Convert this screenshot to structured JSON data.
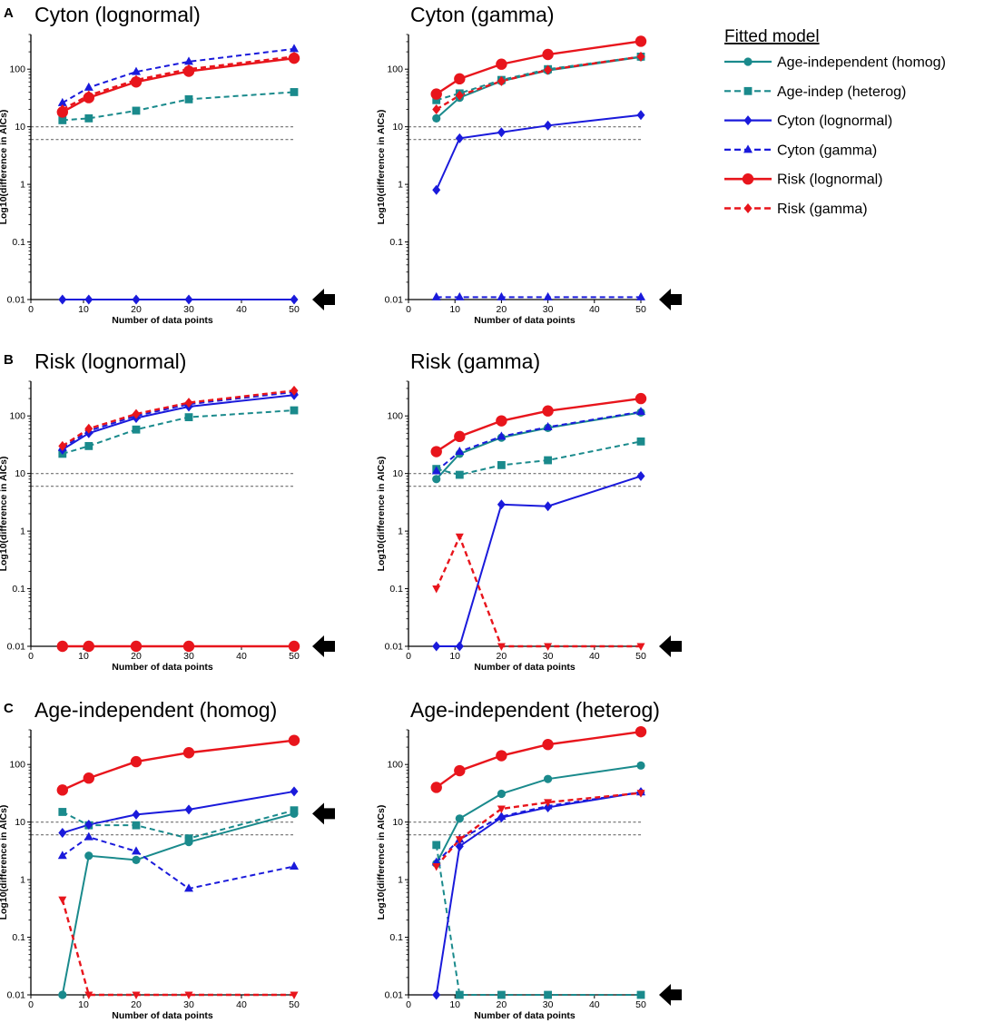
{
  "legend": {
    "title": "Fitted model",
    "items": [
      {
        "id": "ai_homog",
        "label": "Age-independent (homog)",
        "color": "#1a8a8c",
        "dash": false,
        "marker": "circle"
      },
      {
        "id": "ai_heterog",
        "label": "Age-indep (heterog)",
        "color": "#1a8a8c",
        "dash": true,
        "marker": "square"
      },
      {
        "id": "cyton_logn",
        "label": "Cyton (lognormal)",
        "color": "#1a1adb",
        "dash": false,
        "marker": "diamond"
      },
      {
        "id": "cyton_gamma",
        "label": "Cyton (gamma)",
        "color": "#1a1adb",
        "dash": true,
        "marker": "triangle"
      },
      {
        "id": "risk_logn",
        "label": "Risk (lognormal)",
        "color": "#e8151c",
        "dash": false,
        "marker": "bigcircle"
      },
      {
        "id": "risk_gamma",
        "label": "Risk (gamma)",
        "color": "#e8151c",
        "dash": true,
        "marker": "diamond"
      }
    ]
  },
  "chart_data": [
    {
      "type": "line",
      "panel_label": "A",
      "title": "Cyton (lognormal)",
      "xlabel": "Number of data points",
      "ylabel": "Log10(difference in AICs)",
      "xlim": [
        0,
        50
      ],
      "ylim": [
        0.01,
        400
      ],
      "yscale": "log",
      "xticks": [
        0,
        10,
        20,
        30,
        40,
        50
      ],
      "yticks": [
        0.01,
        0.1,
        1,
        10,
        100
      ],
      "ytick_labels": [
        "0.01",
        "0.1",
        "1",
        "10",
        "100"
      ],
      "ref_lines": [
        10,
        6
      ],
      "arrow_level": 0.01,
      "grid": false,
      "x": [
        6,
        11,
        20,
        30,
        50
      ],
      "series": [
        {
          "id": "ai_heterog",
          "values": [
            13,
            14,
            19,
            30,
            40
          ]
        },
        {
          "id": "cyton_gamma",
          "values": [
            26,
            48,
            90,
            135,
            225
          ]
        },
        {
          "id": "cyton_logn",
          "values": [
            0.01,
            0.01,
            0.01,
            0.01,
            0.01
          ]
        },
        {
          "id": "risk_gamma",
          "values": [
            20,
            35,
            65,
            100,
            165
          ]
        },
        {
          "id": "risk_logn",
          "values": [
            18,
            32,
            60,
            92,
            155
          ]
        }
      ]
    },
    {
      "type": "line",
      "panel_label": "",
      "title": "Cyton (gamma)",
      "xlabel": "Number of data points",
      "ylabel": "Log10(difference in AICs)",
      "xlim": [
        0,
        50
      ],
      "ylim": [
        0.01,
        400
      ],
      "yscale": "log",
      "xticks": [
        0,
        10,
        20,
        30,
        40,
        50
      ],
      "yticks": [
        0.01,
        0.1,
        1,
        10,
        100
      ],
      "ytick_labels": [
        "0.01",
        "0.1",
        "1",
        "10",
        "100"
      ],
      "ref_lines": [
        10,
        6
      ],
      "arrow_level": 0.01,
      "grid": false,
      "x": [
        6,
        11,
        20,
        30,
        50
      ],
      "series": [
        {
          "id": "ai_homog",
          "values": [
            14,
            32,
            62,
            95,
            162
          ]
        },
        {
          "id": "ai_heterog",
          "values": [
            29,
            38,
            65,
            100,
            165
          ]
        },
        {
          "id": "cyton_logn",
          "values": [
            0.8,
            6.3,
            8,
            10.5,
            16
          ]
        },
        {
          "id": "cyton_gamma",
          "values": [
            0.011,
            0.011,
            0.011,
            0.011,
            0.011
          ]
        },
        {
          "id": "risk_gamma",
          "values": [
            20,
            35,
            62,
            97,
            165
          ]
        },
        {
          "id": "risk_logn",
          "values": [
            37,
            68,
            122,
            180,
            305
          ]
        }
      ]
    },
    {
      "type": "line",
      "panel_label": "B",
      "title": "Risk (lognormal)",
      "xlabel": "Number of data points",
      "ylabel": "Log10(difference in AICs)",
      "xlim": [
        0,
        50
      ],
      "ylim": [
        0.01,
        400
      ],
      "yscale": "log",
      "xticks": [
        0,
        10,
        20,
        30,
        40,
        50
      ],
      "yticks": [
        0.01,
        0.1,
        1,
        10,
        100
      ],
      "ytick_labels": [
        "0.01",
        "0.1",
        "1",
        "10",
        "100"
      ],
      "ref_lines": [
        10,
        6
      ],
      "arrow_level": 0.01,
      "grid": false,
      "x": [
        6,
        11,
        20,
        30,
        50
      ],
      "series": [
        {
          "id": "ai_heterog",
          "values": [
            22,
            30,
            58,
            95,
            125
          ]
        },
        {
          "id": "cyton_logn",
          "values": [
            26,
            50,
            92,
            145,
            230
          ]
        },
        {
          "id": "cyton_gamma",
          "values": [
            28,
            55,
            100,
            160,
            260
          ]
        },
        {
          "id": "risk_gamma",
          "values": [
            30,
            60,
            108,
            170,
            275
          ]
        },
        {
          "id": "risk_logn",
          "values": [
            0.01,
            0.01,
            0.01,
            0.01,
            0.01
          ]
        }
      ]
    },
    {
      "type": "line",
      "panel_label": "",
      "title": "Risk (gamma)",
      "xlabel": "Number of data points",
      "ylabel": "Log10(difference in AICs)",
      "xlim": [
        0,
        50
      ],
      "ylim": [
        0.01,
        400
      ],
      "yscale": "log",
      "xticks": [
        0,
        10,
        20,
        30,
        40,
        50
      ],
      "yticks": [
        0.01,
        0.1,
        1,
        10,
        100
      ],
      "ytick_labels": [
        "0.01",
        "0.1",
        "1",
        "10",
        "100"
      ],
      "ref_lines": [
        10,
        6
      ],
      "arrow_level": 0.01,
      "grid": false,
      "x": [
        6,
        11,
        20,
        30,
        50
      ],
      "series": [
        {
          "id": "ai_homog",
          "values": [
            8,
            22,
            42,
            62,
            115
          ]
        },
        {
          "id": "ai_heterog",
          "values": [
            12,
            9.5,
            14,
            17,
            36
          ]
        },
        {
          "id": "cyton_logn",
          "values": [
            0.01,
            0.01,
            2.9,
            2.7,
            9
          ]
        },
        {
          "id": "cyton_gamma",
          "values": [
            11,
            24,
            44,
            64,
            118
          ]
        },
        {
          "id": "risk_gamma",
          "values": [
            0.1,
            0.8,
            0.01,
            0.01,
            0.01
          ],
          "marker": "triangle-down"
        },
        {
          "id": "risk_logn",
          "values": [
            24,
            44,
            82,
            122,
            200
          ]
        }
      ]
    },
    {
      "type": "line",
      "panel_label": "C",
      "title": "Age-independent (homog)",
      "xlabel": "Number of data points",
      "ylabel": "Log10(difference in AICs)",
      "xlim": [
        0,
        50
      ],
      "ylim": [
        0.01,
        400
      ],
      "yscale": "log",
      "xticks": [
        0,
        10,
        20,
        30,
        40,
        50
      ],
      "yticks": [
        0.01,
        0.1,
        1,
        10,
        100
      ],
      "ytick_labels": [
        "0.01",
        "0.1",
        "1",
        "10",
        "100"
      ],
      "ref_lines": [
        10,
        6
      ],
      "arrow_level": 14,
      "grid": false,
      "x": [
        6,
        11,
        20,
        30,
        50
      ],
      "series": [
        {
          "id": "ai_homog",
          "values": [
            0.01,
            2.6,
            2.2,
            4.5,
            14
          ]
        },
        {
          "id": "ai_heterog",
          "values": [
            15,
            8.8,
            8.8,
            5.2,
            16
          ]
        },
        {
          "id": "cyton_logn",
          "values": [
            6.5,
            9,
            13.5,
            16.5,
            34
          ]
        },
        {
          "id": "cyton_gamma",
          "values": [
            2.6,
            5.5,
            3.1,
            0.7,
            1.7
          ]
        },
        {
          "id": "risk_gamma",
          "values": [
            0.45,
            0.01,
            0.01,
            0.01,
            0.01
          ],
          "marker": "triangle-down"
        },
        {
          "id": "risk_logn",
          "values": [
            36,
            58,
            112,
            160,
            262
          ]
        }
      ]
    },
    {
      "type": "line",
      "panel_label": "",
      "title": "Age-independent (heterog)",
      "xlabel": "Number of data points",
      "ylabel": "Log10(difference in AICs)",
      "xlim": [
        0,
        50
      ],
      "ylim": [
        0.01,
        400
      ],
      "yscale": "log",
      "xticks": [
        0,
        10,
        20,
        30,
        40,
        50
      ],
      "yticks": [
        0.01,
        0.1,
        1,
        10,
        100
      ],
      "ytick_labels": [
        "0.01",
        "0.1",
        "1",
        "10",
        "100"
      ],
      "ref_lines": [
        10,
        6
      ],
      "arrow_level": 0.01,
      "grid": false,
      "x": [
        6,
        11,
        20,
        30,
        50
      ],
      "series": [
        {
          "id": "ai_homog",
          "values": [
            1.9,
            11.5,
            31,
            56,
            96
          ]
        },
        {
          "id": "ai_heterog",
          "values": [
            4,
            0.01,
            0.01,
            0.01,
            0.01
          ]
        },
        {
          "id": "cyton_logn",
          "values": [
            0.01,
            3.8,
            12,
            18,
            33
          ]
        },
        {
          "id": "cyton_gamma",
          "values": [
            2,
            5,
            12.5,
            19,
            33
          ]
        },
        {
          "id": "risk_gamma",
          "values": [
            1.7,
            5,
            17,
            22,
            32
          ],
          "marker": "triangle-down"
        },
        {
          "id": "risk_logn",
          "values": [
            40,
            78,
            142,
            222,
            370
          ]
        }
      ]
    }
  ]
}
